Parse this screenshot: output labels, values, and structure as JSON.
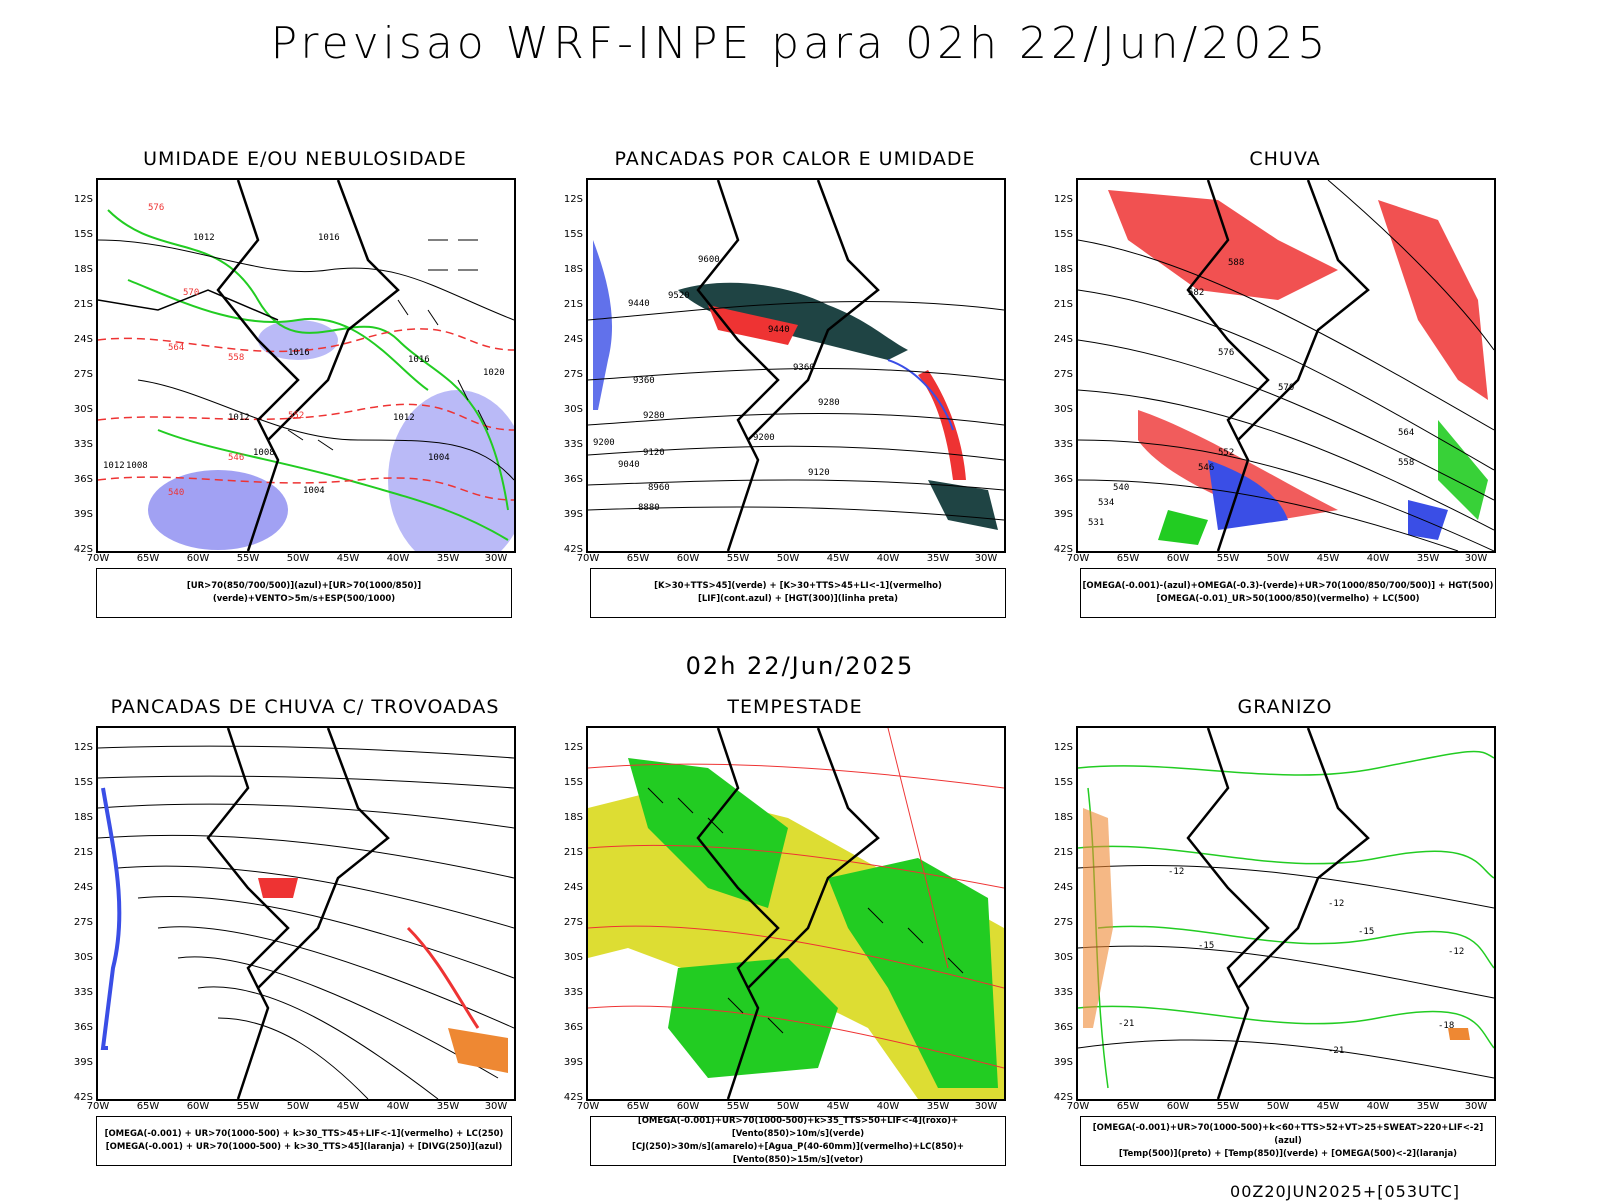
{
  "header": {
    "title": "Previsao WRF-INPE  para 02h 22/Jun/2025",
    "mid_title": "02h 22/Jun/2025",
    "footer": "00Z20JUN2025+[053UTC]"
  },
  "axes": {
    "lat_labels": [
      "12S",
      "15S",
      "18S",
      "21S",
      "24S",
      "27S",
      "30S",
      "33S",
      "36S",
      "39S",
      "42S"
    ],
    "lon_labels": [
      "70W",
      "65W",
      "60W",
      "55W",
      "50W",
      "45W",
      "40W",
      "35W",
      "30W"
    ]
  },
  "panels": [
    {
      "title": "UMIDADE E/OU NEBULOSIDADE",
      "legend": [
        "[UR>70(850/700/500)](azul)+[UR>70(1000/850)](verde)+VENTO>5m/s+ESP(500/1000)"
      ]
    },
    {
      "title": "PANCADAS POR CALOR E UMIDADE",
      "legend": [
        "[K>30+TTS>45](verde) + [K>30+TTS>45+LI<-1](vermelho)",
        "[LIF](cont.azul) + [HGT(300)](linha preta)"
      ]
    },
    {
      "title": "CHUVA",
      "legend": [
        "[OMEGA(-0.001)-(azul)+OMEGA(-0.3)-(verde)+UR>70(1000/850/700/500)] + HGT(500)",
        "[OMEGA(-0.01)_UR>50(1000/850)(vermelho) + LC(500)"
      ]
    },
    {
      "title": "PANCADAS DE CHUVA C/ TROVOADAS",
      "legend": [
        "[OMEGA(-0.001) + UR>70(1000-500) + k>30_TTS>45+LIF<-1](vermelho) + LC(250)",
        "[OMEGA(-0.001) + UR>70(1000-500) + k>30_TTS>45](laranja) + [DIVG(250)](azul)"
      ]
    },
    {
      "title": "TEMPESTADE",
      "legend": [
        "[OMEGA(-0.001)+UR>70(1000-500)+k>35_TTS>50+LIF<-4](roxo)+[Vento(850)>10m/s](verde)",
        "[CJ(250)>30m/s](amarelo)+[Agua_P(40-60mm)](vermelho)+LC(850)+[Vento(850)>15m/s](vetor)"
      ]
    },
    {
      "title": "GRANIZO",
      "legend": [
        "[OMEGA(-0.001)+UR>70(1000-500)+k<60+TTS>52+VT>25+SWEAT>220+LIF<-2](azul)",
        "[Temp(500)](preto) + [Temp(850)](verde) + [OMEGA(500)<-2](laranja)"
      ]
    }
  ],
  "contour_labels": {
    "p1": [
      "1012",
      "1016",
      "1016",
      "1012",
      "1008",
      "1004",
      "1012",
      "1016",
      "1020",
      "1004",
      "1008",
      "1012",
      "576",
      "570",
      "564",
      "558",
      "552",
      "546",
      "540"
    ],
    "p2": [
      "9600",
      "9520",
      "9440",
      "9440",
      "9360",
      "9360",
      "9280",
      "9280",
      "9200",
      "9200",
      "9120",
      "9120",
      "9040",
      "8960",
      "8880"
    ],
    "p3": [
      "588",
      "582",
      "576",
      "570",
      "564",
      "558",
      "552",
      "546",
      "540",
      "534",
      "531"
    ],
    "p6": [
      "-12",
      "-12",
      "-15",
      "-15",
      "-12",
      "-21",
      "-21",
      "-18"
    ]
  },
  "colors": {
    "blue": "#3a4ee6",
    "lavender": "#a9a9f5",
    "green": "#22cc22",
    "red": "#ee3333",
    "darkteal": "#1f4444",
    "yellow": "#dddd33",
    "orange": "#ee8833"
  }
}
